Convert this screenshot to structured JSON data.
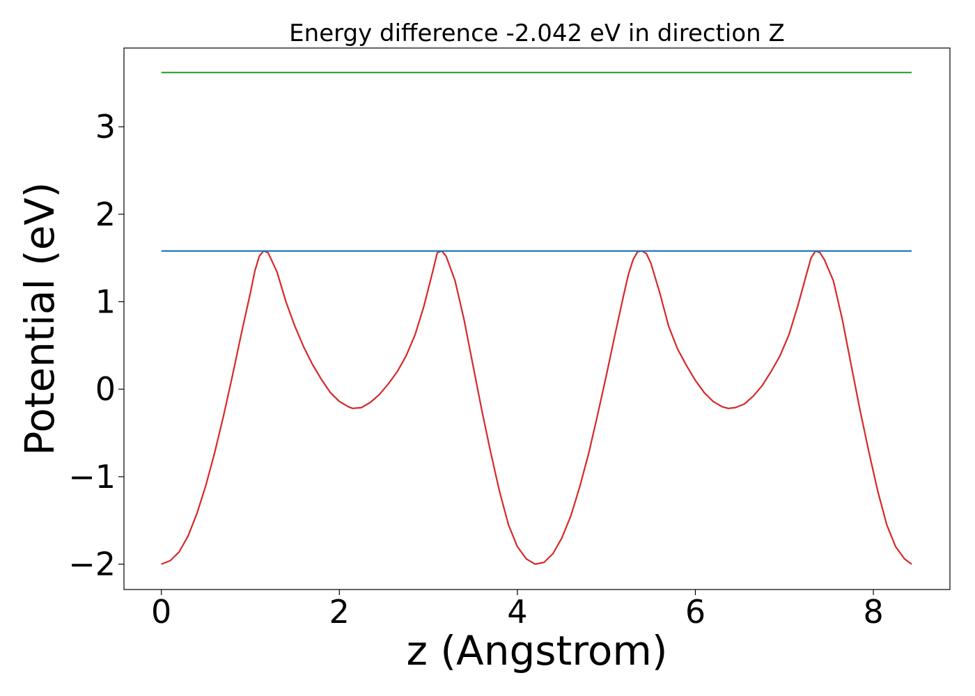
{
  "chart_data": {
    "type": "line",
    "title": "Energy difference -2.042 eV in direction Z",
    "xlabel": "z (Angstrom)",
    "ylabel": "Potential (eV)",
    "xlim": [
      -0.42,
      8.86
    ],
    "ylim": [
      -2.29,
      3.9
    ],
    "xticks": [
      0,
      2,
      4,
      6,
      8
    ],
    "xtick_labels": [
      "0",
      "2",
      "4",
      "6",
      "8"
    ],
    "yticks": [
      -2,
      -1,
      0,
      1,
      2,
      3
    ],
    "ytick_labels": [
      "−2",
      "−1",
      "0",
      "1",
      "2",
      "3"
    ],
    "grid": false,
    "legend": "none",
    "series": [
      {
        "color": "#d62728",
        "points": [
          [
            0.0,
            -2.0
          ],
          [
            0.1,
            -1.96
          ],
          [
            0.2,
            -1.86
          ],
          [
            0.3,
            -1.68
          ],
          [
            0.4,
            -1.42
          ],
          [
            0.5,
            -1.1
          ],
          [
            0.6,
            -0.72
          ],
          [
            0.7,
            -0.3
          ],
          [
            0.8,
            0.16
          ],
          [
            0.9,
            0.64
          ],
          [
            1.0,
            1.1
          ],
          [
            1.05,
            1.35
          ],
          [
            1.1,
            1.52
          ],
          [
            1.15,
            1.58
          ],
          [
            1.2,
            1.56
          ],
          [
            1.3,
            1.34
          ],
          [
            1.4,
            1.0
          ],
          [
            1.5,
            0.72
          ],
          [
            1.6,
            0.48
          ],
          [
            1.7,
            0.28
          ],
          [
            1.8,
            0.11
          ],
          [
            1.9,
            -0.04
          ],
          [
            2.0,
            -0.14
          ],
          [
            2.1,
            -0.2
          ],
          [
            2.15,
            -0.22
          ],
          [
            2.25,
            -0.21
          ],
          [
            2.35,
            -0.15
          ],
          [
            2.45,
            -0.06
          ],
          [
            2.55,
            0.06
          ],
          [
            2.65,
            0.2
          ],
          [
            2.75,
            0.38
          ],
          [
            2.85,
            0.62
          ],
          [
            2.95,
            0.95
          ],
          [
            3.05,
            1.35
          ],
          [
            3.1,
            1.56
          ],
          [
            3.15,
            1.58
          ],
          [
            3.2,
            1.52
          ],
          [
            3.3,
            1.24
          ],
          [
            3.4,
            0.8
          ],
          [
            3.5,
            0.28
          ],
          [
            3.6,
            -0.24
          ],
          [
            3.7,
            -0.72
          ],
          [
            3.8,
            -1.17
          ],
          [
            3.9,
            -1.55
          ],
          [
            4.0,
            -1.8
          ],
          [
            4.1,
            -1.94
          ],
          [
            4.2,
            -2.0
          ],
          [
            4.3,
            -1.98
          ],
          [
            4.4,
            -1.88
          ],
          [
            4.5,
            -1.7
          ],
          [
            4.6,
            -1.45
          ],
          [
            4.7,
            -1.12
          ],
          [
            4.8,
            -0.74
          ],
          [
            4.9,
            -0.3
          ],
          [
            5.0,
            0.16
          ],
          [
            5.1,
            0.64
          ],
          [
            5.2,
            1.1
          ],
          [
            5.25,
            1.32
          ],
          [
            5.3,
            1.48
          ],
          [
            5.35,
            1.57
          ],
          [
            5.4,
            1.58
          ],
          [
            5.45,
            1.55
          ],
          [
            5.5,
            1.44
          ],
          [
            5.6,
            1.1
          ],
          [
            5.7,
            0.72
          ],
          [
            5.8,
            0.46
          ],
          [
            5.9,
            0.27
          ],
          [
            6.0,
            0.1
          ],
          [
            6.1,
            -0.04
          ],
          [
            6.2,
            -0.14
          ],
          [
            6.3,
            -0.2
          ],
          [
            6.37,
            -0.22
          ],
          [
            6.45,
            -0.21
          ],
          [
            6.55,
            -0.17
          ],
          [
            6.65,
            -0.08
          ],
          [
            6.75,
            0.04
          ],
          [
            6.85,
            0.2
          ],
          [
            6.95,
            0.38
          ],
          [
            7.05,
            0.62
          ],
          [
            7.15,
            0.95
          ],
          [
            7.25,
            1.32
          ],
          [
            7.3,
            1.5
          ],
          [
            7.35,
            1.58
          ],
          [
            7.4,
            1.56
          ],
          [
            7.45,
            1.48
          ],
          [
            7.55,
            1.24
          ],
          [
            7.65,
            0.8
          ],
          [
            7.75,
            0.28
          ],
          [
            7.85,
            -0.24
          ],
          [
            7.95,
            -0.72
          ],
          [
            8.05,
            -1.17
          ],
          [
            8.15,
            -1.55
          ],
          [
            8.25,
            -1.8
          ],
          [
            8.35,
            -1.94
          ],
          [
            8.43,
            -2.0
          ]
        ]
      },
      {
        "color": "#1f77b4",
        "points": [
          [
            0.0,
            1.58
          ],
          [
            8.43,
            1.58
          ]
        ]
      },
      {
        "color": "#2ca02c",
        "points": [
          [
            0.0,
            3.62
          ],
          [
            8.43,
            3.62
          ]
        ]
      }
    ]
  }
}
